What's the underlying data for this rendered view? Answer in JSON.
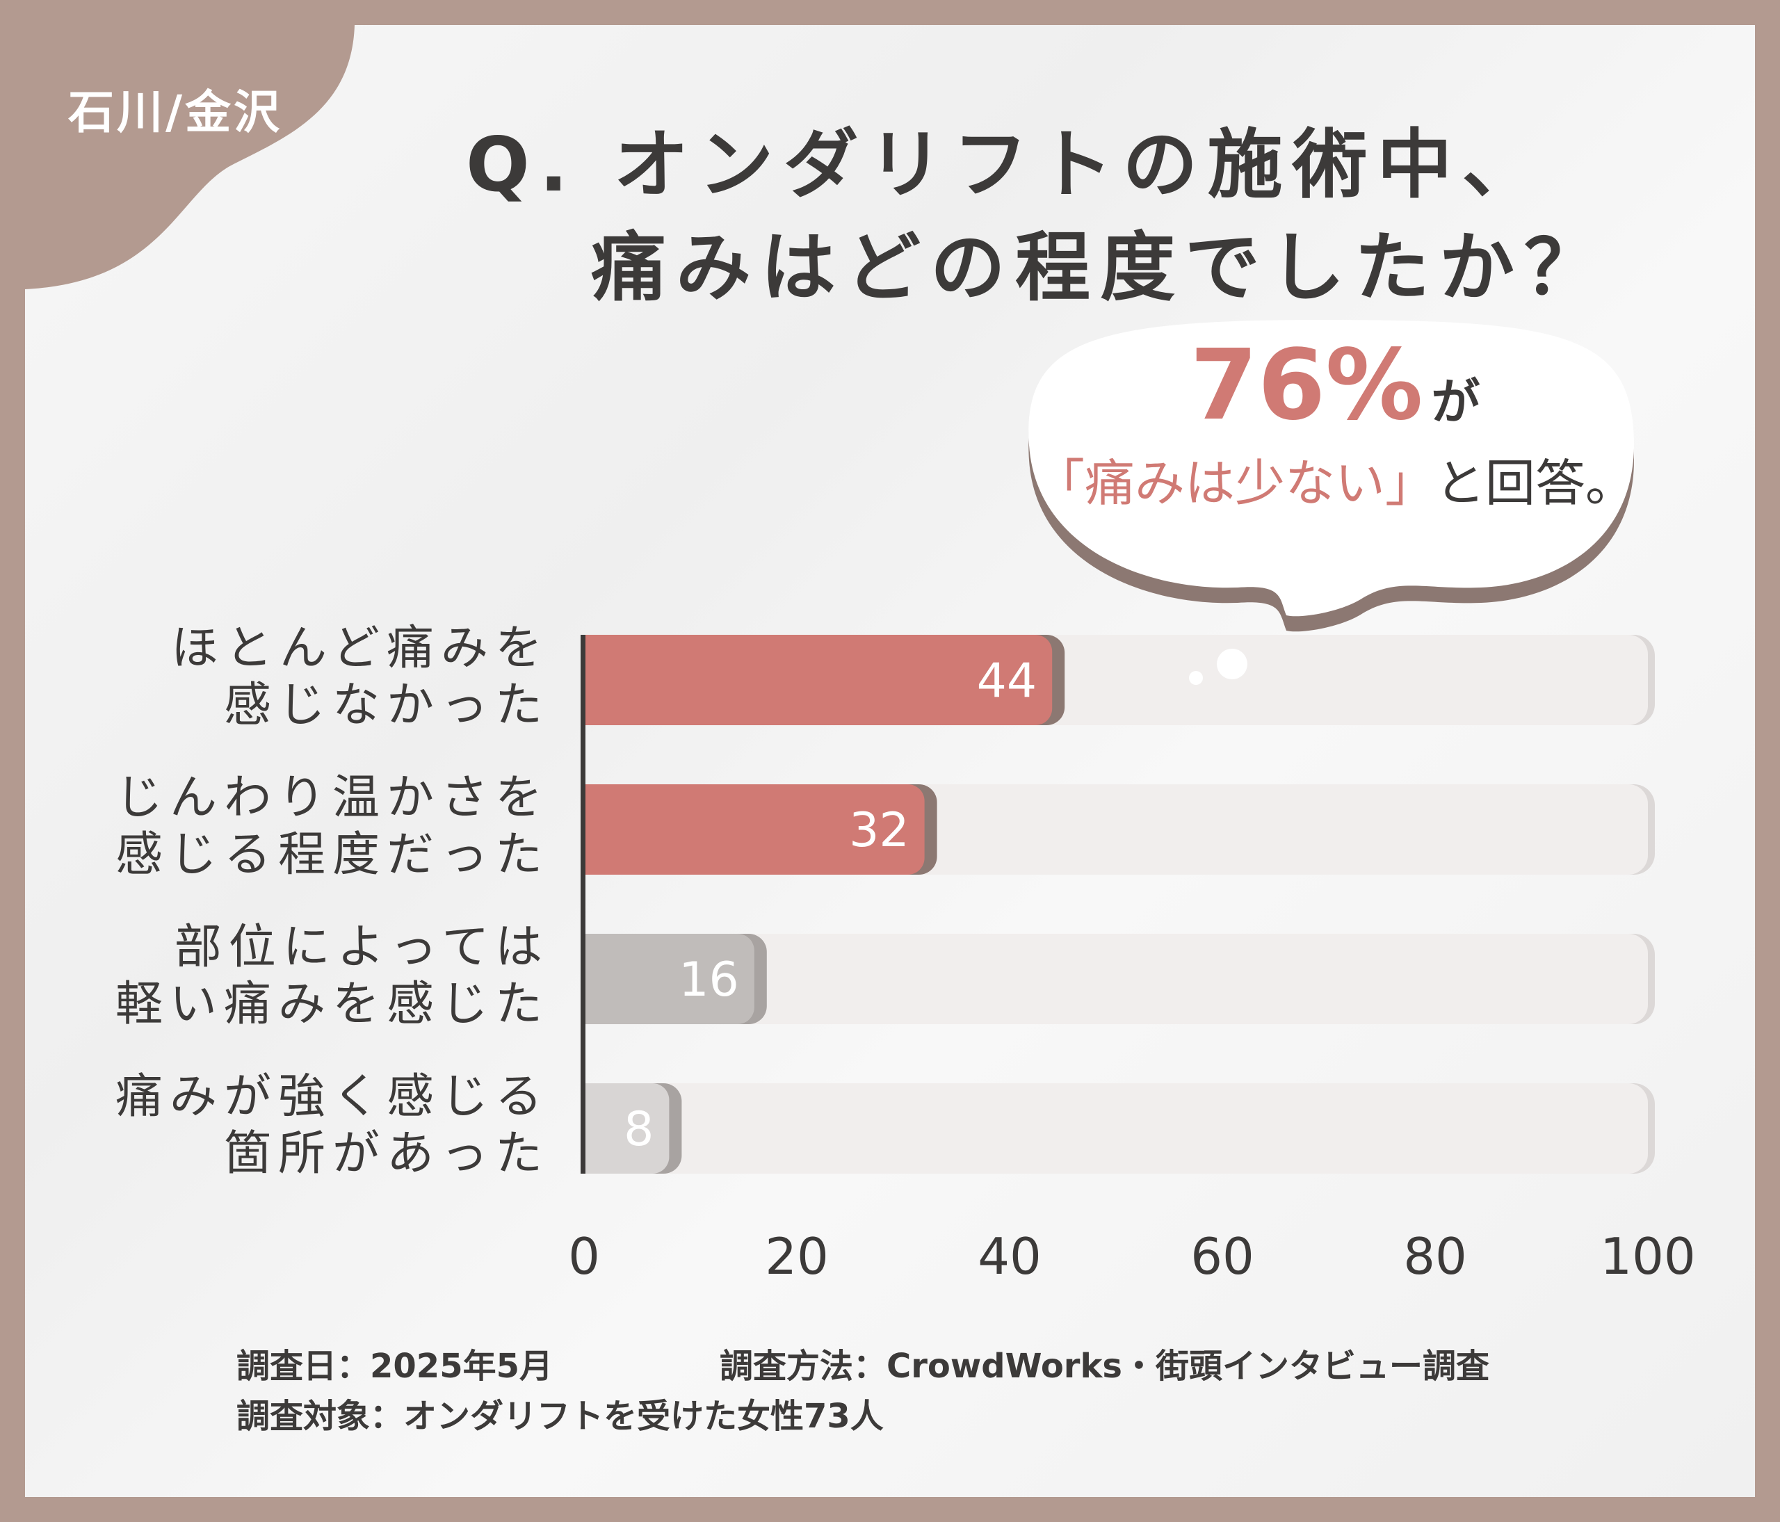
{
  "region_tag": "石川/金沢",
  "title": {
    "line1": "Q. オンダリフトの施術中、",
    "line2": "痛みはどの程度でしたか？"
  },
  "callout": {
    "percent": "76%",
    "percent_suffix": "が",
    "highlight": "「痛みは少ない」",
    "rest": "と回答。"
  },
  "colors": {
    "highlight": "#d07a74",
    "neutral": "#c0bcba",
    "neutral_light": "#d8d5d4",
    "track": "#f1eeed",
    "shadow": "#8c7872",
    "frame": "#b39a90"
  },
  "chart_data": {
    "type": "bar",
    "orientation": "horizontal",
    "categories": [
      [
        "ほとんど痛みを",
        "感じなかった"
      ],
      [
        "じんわり温かさを",
        "感じる程度だった"
      ],
      [
        "部位によっては",
        "軽い痛みを感じた"
      ],
      [
        "痛みが強く感じる",
        "箇所があった"
      ]
    ],
    "values": [
      44,
      32,
      16,
      8
    ],
    "xlim": [
      0,
      100
    ],
    "xticks": [
      "0",
      "20",
      "40",
      "60",
      "80",
      "100"
    ],
    "grid": false,
    "bar_colors": [
      "#d07a74",
      "#d07a74",
      "#c0bcba",
      "#d8d5d4"
    ]
  },
  "footer": {
    "date": "調査日：2025年5月",
    "method": "調査方法：CrowdWorks・街頭インタビュー調査",
    "target": "調査対象：オンダリフトを受けた女性73人"
  }
}
